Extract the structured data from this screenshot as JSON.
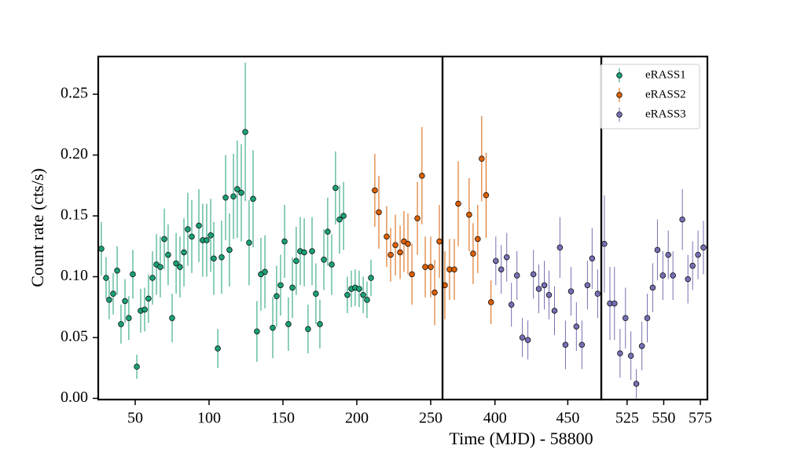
{
  "chart_data": {
    "type": "errorbar",
    "xlabel": "Time (MJD) - 58800",
    "ylabel": "Count rate (cts/s)",
    "legend": "upper right",
    "ylim": [
      -0.001,
      0.281
    ],
    "yticks": [
      {
        "value": 0,
        "label": "0.00"
      },
      0.05,
      {
        "value": 0.1,
        "label": "0.10"
      },
      0.15,
      {
        "value": 0.2,
        "label": "0.20"
      },
      0.25
    ],
    "x_segments": [
      {
        "xlim": [
          25,
          258
        ],
        "xticks": [
          50,
          100,
          150,
          200,
          250
        ]
      },
      {
        "xlim": [
          364,
          473
        ],
        "xticks": [
          400,
          450
        ]
      },
      {
        "xlim": [
          507.4,
          579.8
        ],
        "xticks": [
          525,
          550,
          575
        ]
      }
    ],
    "series": [
      {
        "name": "eRASS1",
        "color": "#1b9e77",
        "x": [
          27.1,
          30.3,
          32.4,
          35.1,
          37.8,
          40.4,
          43.1,
          45.7,
          48.4,
          51.1,
          53.7,
          56.4,
          59.0,
          61.7,
          64.4,
          67.0,
          69.7,
          72.3,
          75.0,
          77.7,
          80.3,
          83.0,
          85.6,
          88.3,
          93.1,
          95.7,
          98.4,
          101.1,
          103.2,
          105.9,
          108.5,
          111.2,
          113.8,
          116.5,
          119.1,
          121.8,
          124.5,
          127.1,
          129.8,
          132.4,
          135.1,
          137.8,
          143.1,
          145.7,
          148.4,
          151.1,
          153.7,
          156.4,
          159.0,
          161.7,
          164.4,
          167.0,
          169.7,
          172.3,
          175.0,
          177.7,
          180.3,
          183.0,
          185.6,
          188.3,
          191.0,
          193.6,
          196.3,
          198.9,
          201.6,
          204.3,
          206.9,
          209.6
        ],
        "values": [
          0.123,
          0.099,
          0.081,
          0.086,
          0.105,
          0.061,
          0.08,
          0.066,
          0.102,
          0.026,
          0.072,
          0.073,
          0.082,
          0.099,
          0.11,
          0.108,
          0.131,
          0.118,
          0.066,
          0.111,
          0.108,
          0.12,
          0.139,
          0.133,
          0.142,
          0.13,
          0.13,
          0.134,
          0.115,
          0.041,
          0.116,
          0.165,
          0.122,
          0.166,
          0.172,
          0.169,
          0.219,
          0.128,
          0.164,
          0.055,
          0.102,
          0.104,
          0.058,
          0.084,
          0.093,
          0.129,
          0.061,
          0.091,
          0.113,
          0.121,
          0.12,
          0.057,
          0.121,
          0.086,
          0.061,
          0.114,
          0.137,
          0.11,
          0.173,
          0.147,
          0.15,
          0.085,
          0.09,
          0.091,
          0.09,
          0.085,
          0.081,
          0.099
        ],
        "errors": [
          0.022,
          0.017,
          0.016,
          0.017,
          0.02,
          0.016,
          0.018,
          0.018,
          0.02,
          0.01,
          0.018,
          0.018,
          0.02,
          0.022,
          0.025,
          0.025,
          0.025,
          0.025,
          0.02,
          0.025,
          0.025,
          0.028,
          0.03,
          0.03,
          0.03,
          0.03,
          0.03,
          0.03,
          0.03,
          0.016,
          0.03,
          0.035,
          0.03,
          0.035,
          0.04,
          0.04,
          0.057,
          0.035,
          0.04,
          0.025,
          0.03,
          0.03,
          0.025,
          0.025,
          0.025,
          0.03,
          0.022,
          0.025,
          0.028,
          0.028,
          0.028,
          0.02,
          0.028,
          0.025,
          0.02,
          0.025,
          0.028,
          0.025,
          0.03,
          0.028,
          0.028,
          0.015,
          0.015,
          0.015,
          0.015,
          0.015,
          0.015,
          0.015
        ]
      },
      {
        "name": "eRASS2",
        "color": "#d95f02",
        "x": [
          212.2,
          214.9,
          220.2,
          222.9,
          226.1,
          229.3,
          231.9,
          234.6,
          237.3,
          241.0,
          244.1,
          246.3,
          250.0,
          252.7,
          255.9,
          365.6,
          368.8,
          372.1,
          374.8,
          382.3,
          385.0,
          388.2,
          390.9,
          393.9,
          397.3
        ],
        "values": [
          0.171,
          0.153,
          0.133,
          0.118,
          0.126,
          0.12,
          0.129,
          0.127,
          0.102,
          0.148,
          0.183,
          0.108,
          0.108,
          0.087,
          0.129,
          0.093,
          0.106,
          0.106,
          0.16,
          0.151,
          0.119,
          0.131,
          0.197,
          0.167,
          0.079
        ],
        "errors": [
          0.03,
          0.03,
          0.025,
          0.022,
          0.025,
          0.022,
          0.025,
          0.025,
          0.025,
          0.03,
          0.04,
          0.025,
          0.025,
          0.027,
          0.03,
          0.028,
          0.025,
          0.025,
          0.035,
          0.03,
          0.025,
          0.028,
          0.035,
          0.035,
          0.018
        ]
      },
      {
        "name": "eRASS3",
        "color": "#7570b3",
        "x": [
          400.6,
          404.3,
          408.1,
          411.3,
          415.1,
          418.8,
          422.6,
          426.4,
          430.1,
          433.9,
          437.1,
          440.9,
          444.6,
          448.4,
          452.2,
          455.9,
          459.7,
          463.5,
          466.7,
          470.5,
          509.5,
          513.3,
          516.4,
          520.2,
          523.9,
          527.6,
          531.3,
          535.1,
          538.8,
          542.5,
          545.7,
          549.4,
          553.1,
          556.3,
          562.7,
          566.5,
          569.7,
          573.4,
          577.1
        ],
        "values": [
          0.113,
          0.106,
          0.116,
          0.077,
          0.101,
          0.05,
          0.048,
          0.102,
          0.09,
          0.093,
          0.085,
          0.072,
          0.124,
          0.044,
          0.088,
          0.059,
          0.044,
          0.093,
          0.115,
          0.086,
          0.127,
          0.078,
          0.078,
          0.037,
          0.066,
          0.035,
          0.012,
          0.043,
          0.066,
          0.091,
          0.122,
          0.101,
          0.118,
          0.101,
          0.147,
          0.098,
          0.109,
          0.118,
          0.124
        ],
        "errors": [
          0.02,
          0.02,
          0.02,
          0.018,
          0.02,
          0.016,
          0.016,
          0.02,
          0.02,
          0.02,
          0.02,
          0.02,
          0.025,
          0.02,
          0.02,
          0.02,
          0.02,
          0.02,
          0.025,
          0.02,
          0.04,
          0.03,
          0.03,
          0.02,
          0.025,
          0.02,
          0.012,
          0.02,
          0.02,
          0.02,
          0.025,
          0.02,
          0.02,
          0.02,
          0.025,
          0.02,
          0.02,
          0.02,
          0.022
        ]
      }
    ]
  }
}
